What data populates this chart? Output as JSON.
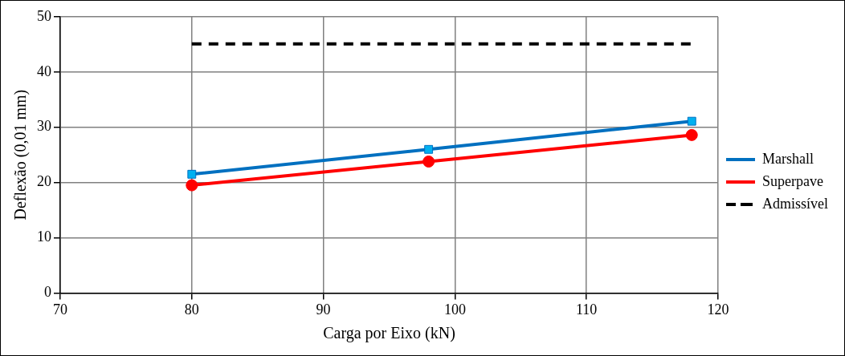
{
  "chart_data": {
    "type": "line",
    "xlabel": "Carga por Eixo (kN)",
    "ylabel": "Deflexão (0,01 mm)",
    "x": [
      80,
      98,
      118
    ],
    "series": [
      {
        "name": "Marshall",
        "color": "#0070c0",
        "values": [
          21.5,
          26.0,
          31.1
        ],
        "marker": "square"
      },
      {
        "name": "Superpave",
        "color": "#ff0000",
        "values": [
          19.5,
          23.8,
          28.6
        ],
        "marker": "circle"
      },
      {
        "name": "Admissível",
        "color": "#000000",
        "values": [
          45.1,
          45.1,
          45.1
        ],
        "marker": "none",
        "line_style": "dashed"
      }
    ],
    "xlim": [
      70,
      120
    ],
    "xticks": [
      70,
      80,
      90,
      100,
      110,
      120
    ],
    "ylim": [
      0,
      50
    ],
    "yticks": [
      0,
      10,
      20,
      30,
      40,
      50
    ],
    "grid": true,
    "legend": "right"
  }
}
